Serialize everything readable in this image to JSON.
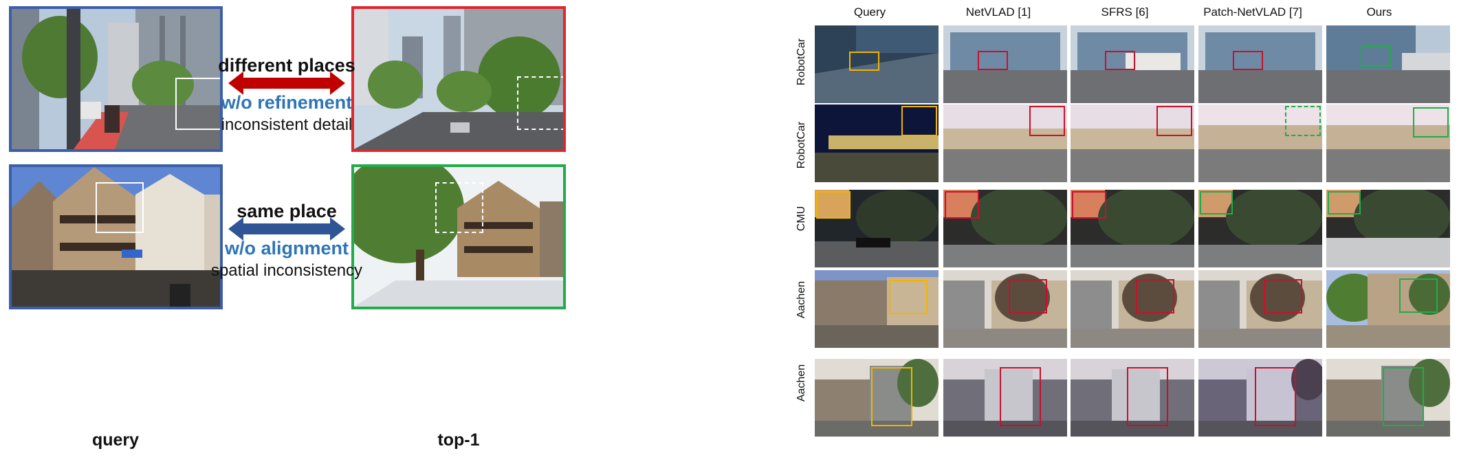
{
  "left_panel": {
    "caption_query": "query",
    "caption_top1": "top-1",
    "case_top": {
      "headline": "different places",
      "method": "w/o refinement",
      "issue": "inconsistent detail",
      "arrow_color": "#c00000"
    },
    "case_bottom": {
      "headline": "same place",
      "method": "w/o alignment",
      "issue": "spatial inconsistency",
      "arrow_color": "#2f5597"
    }
  },
  "right_panel": {
    "columns": [
      "Query",
      "NetVLAD [1]",
      "SFRS [6]",
      "Patch-NetVLAD [7]",
      "Ours"
    ],
    "rows": [
      "RobotCar",
      "RobotCar",
      "CMU",
      "Aachen",
      "Aachen"
    ]
  },
  "colors": {
    "query_frame": "#3c5ea8",
    "wrong_frame": "#e0262d",
    "correct_frame": "#22ab4a",
    "query_box": "#f2b400"
  }
}
